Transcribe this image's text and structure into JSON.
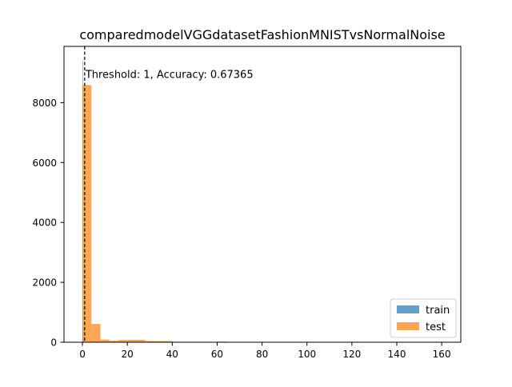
{
  "chart_data": {
    "type": "bar",
    "title": "comparedmodelVGGdatasetFashionMNISTvsNormalNoise",
    "xlabel": "",
    "ylabel": "",
    "xlim": [
      -8.2,
      168.5
    ],
    "ylim": [
      0,
      9880
    ],
    "x_ticks": [
      0,
      20,
      40,
      60,
      80,
      100,
      120,
      140,
      160
    ],
    "x_tick_labels": [
      "0",
      "20",
      "40",
      "60",
      "80",
      "100",
      "120",
      "140",
      "160"
    ],
    "y_ticks": [
      0,
      2000,
      4000,
      6000,
      8000
    ],
    "y_tick_labels": [
      "0",
      "2000",
      "4000",
      "6000",
      "8000"
    ],
    "grid": false,
    "legend_position": "lower right",
    "series": [
      {
        "name": "train",
        "color": "#1f77b4",
        "opacity": 0.7,
        "bins": [
          {
            "x0": 0.0,
            "x1": 0.2,
            "count": 9410
          },
          {
            "x0": 0.2,
            "x1": 0.4,
            "count": 480
          },
          {
            "x0": 0.4,
            "x1": 0.6,
            "count": 90
          },
          {
            "x0": 0.6,
            "x1": 0.8,
            "count": 20
          }
        ]
      },
      {
        "name": "test",
        "color": "#ff7f0e",
        "opacity": 0.7,
        "bins": [
          {
            "x0": 0.0,
            "x1": 4.0,
            "count": 8590
          },
          {
            "x0": 4.0,
            "x1": 8.0,
            "count": 610
          },
          {
            "x0": 8.0,
            "x1": 12.0,
            "count": 90
          },
          {
            "x0": 12.0,
            "x1": 16.0,
            "count": 50
          },
          {
            "x0": 16.0,
            "x1": 20.0,
            "count": 75
          },
          {
            "x0": 20.0,
            "x1": 28.0,
            "count": 80
          },
          {
            "x0": 28.0,
            "x1": 40.0,
            "count": 40
          },
          {
            "x0": 40.0,
            "x1": 56.0,
            "count": 15
          },
          {
            "x0": 60.0,
            "x1": 64.0,
            "count": 20
          }
        ]
      }
    ],
    "threshold": {
      "x": 1,
      "line_style": "dashed",
      "color": "#000000",
      "label": "Threshold: 1, Accuracy: 0.67365",
      "label_y": 8960
    }
  }
}
